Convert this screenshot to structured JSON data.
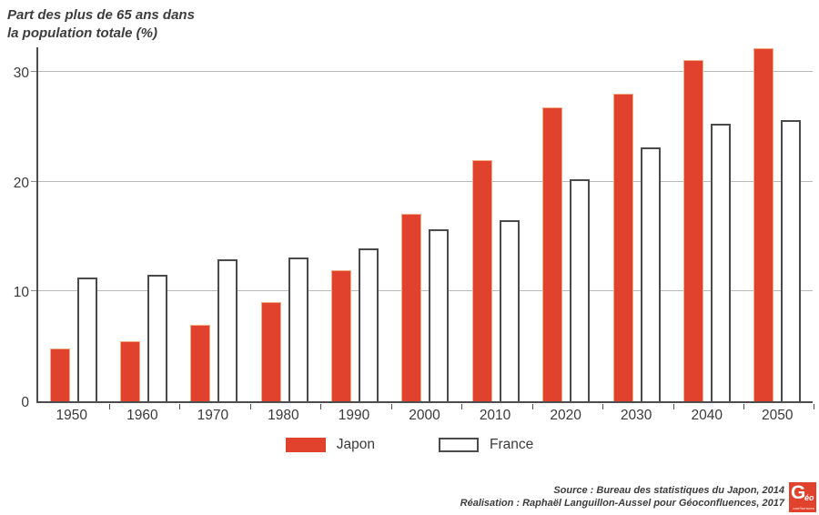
{
  "title": {
    "line1": "Part des plus de 65 ans dans",
    "line2": "la population totale (%)"
  },
  "colors": {
    "japon_fill": "#e0422e",
    "japon_border": "#f2ab85",
    "france_fill": "#ffffff",
    "france_border": "#4a4a4a",
    "gridline": "#b9b9b9",
    "axis": "#4d4d4d",
    "text": "#3a3a3a"
  },
  "y_axis": {
    "tick_values": [
      0,
      10,
      20,
      30
    ]
  },
  "legend": {
    "items": [
      {
        "label": "Japon",
        "swatch": "japon"
      },
      {
        "label": "France",
        "swatch": "france"
      }
    ]
  },
  "source": {
    "line1": "Source : Bureau des statistiques du Japon, 2014",
    "line2": "Réalisation : Raphaël Languillon-Aussel pour Géoconfluences, 2017"
  },
  "logo": {
    "letter": "G",
    "small": "éo",
    "sub": "confluences"
  },
  "chart_data": {
    "type": "bar",
    "title": "Part des plus de 65 ans dans la population totale (%)",
    "categories": [
      "1950",
      "1960",
      "1970",
      "1980",
      "1990",
      "2000",
      "2010",
      "2020",
      "2030",
      "2040",
      "2050"
    ],
    "series": [
      {
        "name": "Japon",
        "color": "#e0422e",
        "values": [
          4.8,
          5.5,
          7.0,
          9.0,
          11.9,
          17.1,
          22.0,
          26.8,
          28.0,
          31.1,
          32.2
        ]
      },
      {
        "name": "France",
        "color": "#ffffff",
        "values": [
          11.3,
          11.5,
          12.9,
          13.1,
          13.9,
          15.7,
          16.5,
          20.2,
          23.1,
          25.3,
          25.6
        ]
      }
    ],
    "xlabel": "",
    "ylabel": "Part des plus de 65 ans dans la population totale (%)",
    "ylim": [
      0,
      32.5
    ],
    "gridline_values": [
      10,
      20,
      30
    ],
    "grid": "horizontal",
    "legend_position": "bottom"
  }
}
